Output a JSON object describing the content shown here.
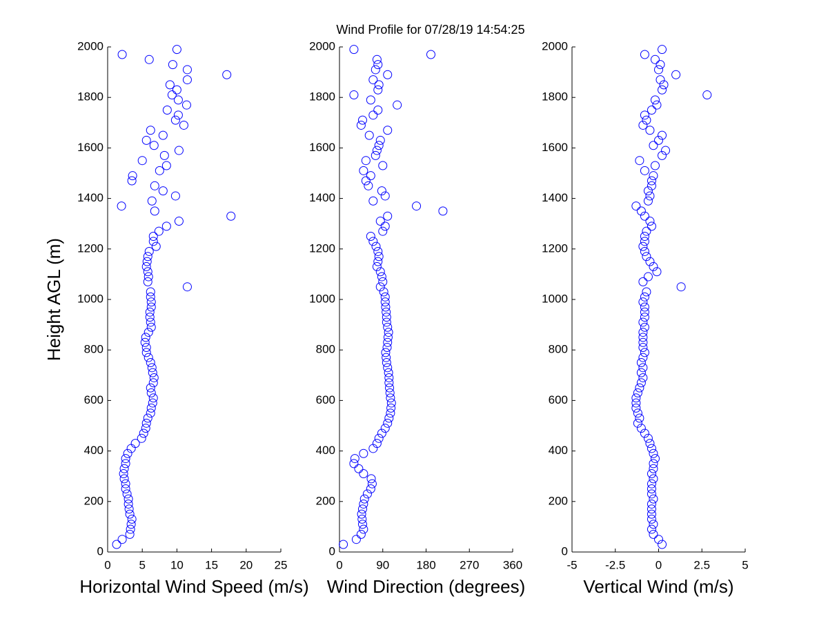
{
  "chart_data": [
    {
      "type": "scatter",
      "ylabel": "Height AGL (m)",
      "xlabel": "Horizontal Wind Speed (m/s)",
      "color": "#0000ff",
      "xlim": [
        0,
        25
      ],
      "xticks": [
        0,
        5,
        10,
        15,
        20,
        25
      ],
      "ylim": [
        0,
        2000
      ],
      "yticks": [
        0,
        200,
        400,
        600,
        800,
        1000,
        1200,
        1400,
        1600,
        1800,
        2000
      ],
      "y": [
        30,
        50,
        70,
        90,
        110,
        130,
        150,
        170,
        190,
        210,
        230,
        250,
        270,
        290,
        310,
        330,
        350,
        370,
        390,
        410,
        430,
        450,
        470,
        490,
        510,
        530,
        550,
        570,
        590,
        610,
        630,
        650,
        670,
        690,
        710,
        730,
        750,
        770,
        790,
        810,
        830,
        850,
        870,
        890,
        910,
        930,
        950,
        970,
        990,
        1010,
        1030,
        1050,
        1070,
        1090,
        1110,
        1130,
        1150,
        1170,
        1190,
        1210,
        1230,
        1250,
        1270,
        1290,
        1310,
        1330,
        1350,
        1370,
        1390,
        1410,
        1430,
        1450,
        1470,
        1490,
        1510,
        1530,
        1550,
        1570,
        1590,
        1610,
        1630,
        1650,
        1670,
        1690,
        1710,
        1730,
        1750,
        1770,
        1790,
        1810,
        1830,
        1850,
        1870,
        1890,
        1910,
        1930,
        1950,
        1970,
        1990
      ],
      "x": [
        1.3,
        2.1,
        3.2,
        3.3,
        3.4,
        3.5,
        3.2,
        3.1,
        3.0,
        3.0,
        2.8,
        2.6,
        2.6,
        2.4,
        2.3,
        2.4,
        2.6,
        2.6,
        2.9,
        3.4,
        4.0,
        4.9,
        5.2,
        5.5,
        5.6,
        5.8,
        6.2,
        6.3,
        6.5,
        6.6,
        6.3,
        6.2,
        6.6,
        6.7,
        6.5,
        6.4,
        6.2,
        5.9,
        5.6,
        5.6,
        5.4,
        5.5,
        5.9,
        6.3,
        6.2,
        6.1,
        6.1,
        6.3,
        6.3,
        6.2,
        6.2,
        11.5,
        5.8,
        5.9,
        5.8,
        5.6,
        5.7,
        5.8,
        6.0,
        7.0,
        6.6,
        6.6,
        7.4,
        8.5,
        10.3,
        17.8,
        6.8,
        2.0,
        6.4,
        9.8,
        8.0,
        6.8,
        3.5,
        3.6,
        7.5,
        8.5,
        5.0,
        8.2,
        10.3,
        6.7,
        5.6,
        8.0,
        6.2,
        11.0,
        9.8,
        10.2,
        8.6,
        11.4,
        10.2,
        9.3,
        10.0,
        9.0,
        11.5,
        17.2,
        11.5,
        9.4,
        6.0,
        2.1,
        10.0
      ]
    },
    {
      "type": "scatter",
      "title": "Wind Profile for  07/28/19 14:54:25",
      "xlabel": "Wind Direction (degrees)",
      "color": "#0000ff",
      "xlim": [
        0,
        360
      ],
      "xticks": [
        0,
        90,
        180,
        270,
        360
      ],
      "ylim": [
        0,
        2000
      ],
      "yticks": [
        0,
        200,
        400,
        600,
        800,
        1000,
        1200,
        1400,
        1600,
        1800,
        2000
      ],
      "y": [
        30,
        50,
        70,
        90,
        110,
        130,
        150,
        170,
        190,
        210,
        230,
        250,
        270,
        290,
        310,
        330,
        350,
        370,
        390,
        410,
        430,
        450,
        470,
        490,
        510,
        530,
        550,
        570,
        590,
        610,
        630,
        650,
        670,
        690,
        710,
        730,
        750,
        770,
        790,
        810,
        830,
        850,
        870,
        890,
        910,
        930,
        950,
        970,
        990,
        1010,
        1030,
        1050,
        1070,
        1090,
        1110,
        1130,
        1150,
        1170,
        1190,
        1210,
        1230,
        1250,
        1270,
        1290,
        1310,
        1330,
        1350,
        1370,
        1390,
        1410,
        1430,
        1450,
        1470,
        1490,
        1510,
        1530,
        1550,
        1570,
        1590,
        1610,
        1630,
        1650,
        1670,
        1690,
        1710,
        1730,
        1750,
        1770,
        1790,
        1810,
        1830,
        1850,
        1870,
        1890,
        1910,
        1930,
        1950,
        1970,
        1990
      ],
      "x": [
        8,
        35,
        45,
        50,
        48,
        47,
        46,
        48,
        50,
        52,
        58,
        65,
        68,
        66,
        50,
        40,
        30,
        32,
        50,
        70,
        78,
        82,
        88,
        95,
        100,
        103,
        106,
        107,
        108,
        106,
        105,
        104,
        103,
        103,
        102,
        100,
        98,
        97,
        96,
        99,
        100,
        101,
        102,
        100,
        98,
        98,
        97,
        96,
        95,
        95,
        92,
        85,
        90,
        88,
        85,
        78,
        80,
        82,
        80,
        76,
        70,
        65,
        90,
        95,
        85,
        100,
        215,
        160,
        70,
        95,
        88,
        60,
        55,
        65,
        50,
        90,
        55,
        75,
        78,
        82,
        85,
        62,
        100,
        45,
        48,
        70,
        80,
        120,
        65,
        30,
        80,
        82,
        70,
        100,
        75,
        80,
        78,
        190,
        30
      ]
    },
    {
      "type": "scatter",
      "xlabel": "Vertical Wind (m/s)",
      "color": "#0000ff",
      "xlim": [
        -5,
        5
      ],
      "xticks": [
        -5,
        -2.5,
        0,
        2.5,
        5
      ],
      "ylim": [
        0,
        2000
      ],
      "yticks": [
        0,
        200,
        400,
        600,
        800,
        1000,
        1200,
        1400,
        1600,
        1800,
        2000
      ],
      "y": [
        30,
        50,
        70,
        90,
        110,
        130,
        150,
        170,
        190,
        210,
        230,
        250,
        270,
        290,
        310,
        330,
        350,
        370,
        390,
        410,
        430,
        450,
        470,
        490,
        510,
        530,
        550,
        570,
        590,
        610,
        630,
        650,
        670,
        690,
        710,
        730,
        750,
        770,
        790,
        810,
        830,
        850,
        870,
        890,
        910,
        930,
        950,
        970,
        990,
        1010,
        1030,
        1050,
        1070,
        1090,
        1110,
        1130,
        1150,
        1170,
        1190,
        1210,
        1230,
        1250,
        1270,
        1290,
        1310,
        1330,
        1350,
        1370,
        1390,
        1410,
        1430,
        1450,
        1470,
        1490,
        1510,
        1530,
        1550,
        1570,
        1590,
        1610,
        1630,
        1650,
        1670,
        1690,
        1710,
        1730,
        1750,
        1770,
        1790,
        1810,
        1830,
        1850,
        1870,
        1890,
        1910,
        1930,
        1950,
        1970,
        1990
      ],
      "x": [
        0.2,
        0.0,
        -0.3,
        -0.4,
        -0.3,
        -0.4,
        -0.4,
        -0.4,
        -0.4,
        -0.3,
        -0.4,
        -0.4,
        -0.4,
        -0.3,
        -0.4,
        -0.3,
        -0.3,
        -0.2,
        -0.3,
        -0.4,
        -0.5,
        -0.6,
        -0.8,
        -1.0,
        -1.2,
        -1.1,
        -1.2,
        -1.3,
        -1.3,
        -1.3,
        -1.2,
        -1.1,
        -1.0,
        -0.9,
        -1.0,
        -0.9,
        -1.0,
        -0.9,
        -0.8,
        -0.9,
        -0.9,
        -0.9,
        -0.9,
        -0.8,
        -0.9,
        -0.8,
        -0.8,
        -0.8,
        -0.9,
        -0.8,
        -0.7,
        1.3,
        -0.9,
        -0.6,
        -0.1,
        -0.3,
        -0.5,
        -0.7,
        -0.8,
        -0.9,
        -0.8,
        -0.8,
        -0.7,
        -0.4,
        -0.5,
        -0.8,
        -1.0,
        -1.3,
        -0.6,
        -0.5,
        -0.6,
        -0.4,
        -0.4,
        -0.3,
        -0.8,
        -0.2,
        -1.1,
        0.2,
        0.4,
        -0.3,
        0.0,
        0.2,
        -0.5,
        -0.9,
        -0.7,
        -0.8,
        -0.4,
        -0.1,
        -0.2,
        2.8,
        0.2,
        0.3,
        0.1,
        1.0,
        0.0,
        0.1,
        -0.2,
        -0.8,
        0.2
      ]
    }
  ]
}
